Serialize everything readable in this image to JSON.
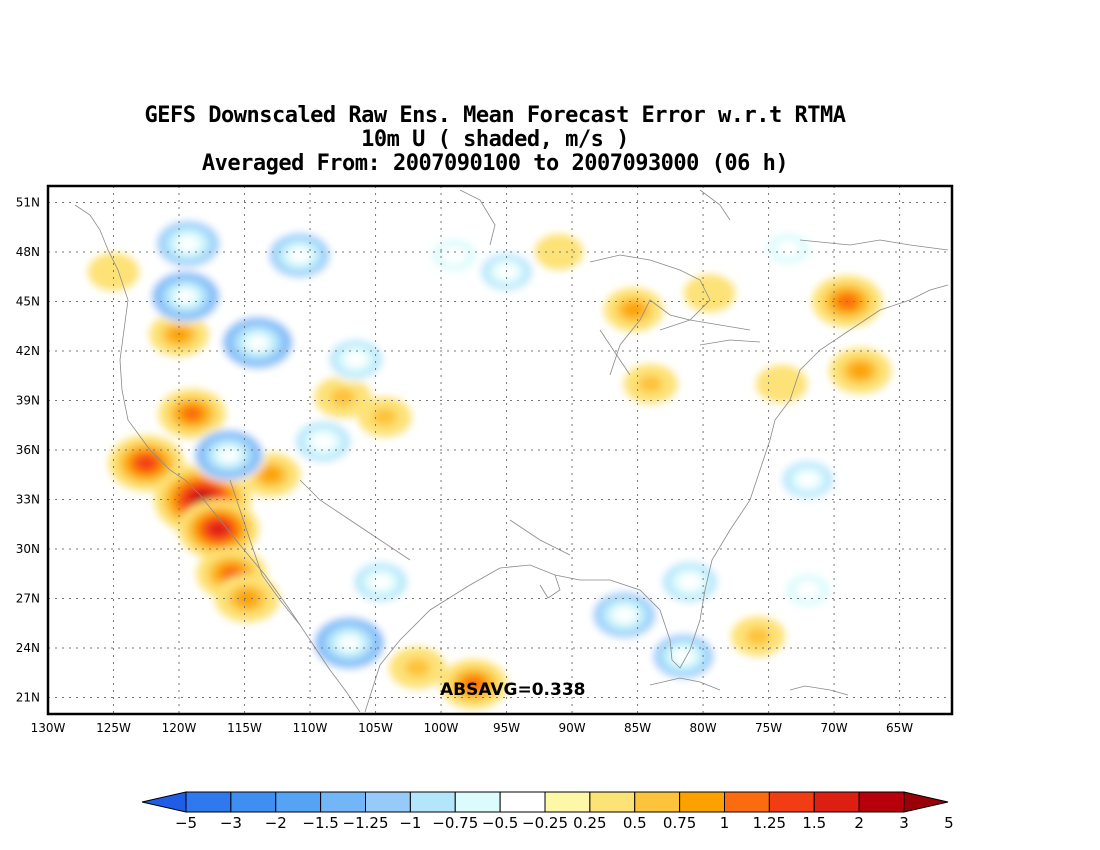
{
  "title": {
    "line1": "GEFS Downscaled Raw Ens. Mean Forecast Error w.r.t RTMA",
    "line2": "10m U ( shaded, m/s )",
    "line3": "Averaged From: 2007090100 to 2007093000 (06 h)"
  },
  "map": {
    "type": "contour-shaded map",
    "lon_range": [
      -130,
      -61
    ],
    "lat_range": [
      20,
      52
    ],
    "lat_labels": [
      "21N",
      "24N",
      "27N",
      "30N",
      "33N",
      "36N",
      "39N",
      "42N",
      "45N",
      "48N",
      "51N"
    ],
    "lat_values": [
      21,
      24,
      27,
      30,
      33,
      36,
      39,
      42,
      45,
      48,
      51
    ],
    "lon_labels": [
      "130W",
      "125W",
      "120W",
      "115W",
      "110W",
      "105W",
      "100W",
      "95W",
      "90W",
      "85W",
      "80W",
      "75W",
      "70W",
      "65W"
    ],
    "lon_values": [
      -130,
      -125,
      -120,
      -115,
      -110,
      -105,
      -100,
      -95,
      -90,
      -85,
      -80,
      -75,
      -70,
      -65
    ],
    "grid": true,
    "statistic_label": "ABSAVG=0.338"
  },
  "colorbar": {
    "levels": [
      "-5",
      "-3",
      "-2",
      "-1.5",
      "-1.25",
      "-1",
      "-0.75",
      "-0.5",
      "-0.25",
      "0.25",
      "0.5",
      "0.75",
      "1",
      "1.25",
      "1.5",
      "2",
      "3",
      "5"
    ],
    "colors": [
      "#1e5ee6",
      "#2f79ee",
      "#3f8ff2",
      "#55a3f5",
      "#72b6f7",
      "#96cbf9",
      "#b4e6fb",
      "#dcfbfc",
      "#ffffff",
      "#fdf7a8",
      "#fde277",
      "#fdc33b",
      "#fca200",
      "#fc6b10",
      "#f23d14",
      "#dd1e12",
      "#b8000c",
      "#9a0008"
    ]
  },
  "chart_data": {
    "type": "heatmap",
    "title": "GEFS Downscaled Raw Ens. Mean Forecast Error w.r.t RTMA",
    "subtitle": "10m U ( shaded, m/s )",
    "xlabel": "",
    "ylabel": "",
    "xlim": [
      -130,
      -61
    ],
    "ylim": [
      20,
      52
    ],
    "absavg": 0.338,
    "blobs": [
      {
        "lon": -122.5,
        "lat": 35.2,
        "value": 1.4
      },
      {
        "lon": -118.2,
        "lat": 33.0,
        "value": 2.2
      },
      {
        "lon": -117.0,
        "lat": 31.2,
        "value": 1.6
      },
      {
        "lon": -116.0,
        "lat": 28.5,
        "value": 1.2
      },
      {
        "lon": -114.8,
        "lat": 27.0,
        "value": 1.0
      },
      {
        "lon": -119.0,
        "lat": 38.2,
        "value": 1.1
      },
      {
        "lon": -120.0,
        "lat": 43.0,
        "value": 0.8
      },
      {
        "lon": -125.0,
        "lat": 46.8,
        "value": 0.5
      },
      {
        "lon": -113.0,
        "lat": 34.5,
        "value": 0.8
      },
      {
        "lon": -107.5,
        "lat": 39.2,
        "value": 0.7
      },
      {
        "lon": -104.3,
        "lat": 38.0,
        "value": 0.6
      },
      {
        "lon": -97.5,
        "lat": 21.8,
        "value": 1.1
      },
      {
        "lon": -101.8,
        "lat": 22.8,
        "value": 0.7
      },
      {
        "lon": -85.3,
        "lat": 44.5,
        "value": 0.8
      },
      {
        "lon": -91.0,
        "lat": 48.0,
        "value": 0.4
      },
      {
        "lon": -84.0,
        "lat": 40.0,
        "value": 0.6
      },
      {
        "lon": -69.0,
        "lat": 45.0,
        "value": 1.2
      },
      {
        "lon": -68.0,
        "lat": 40.8,
        "value": 0.9
      },
      {
        "lon": -74.0,
        "lat": 40.0,
        "value": 0.5
      },
      {
        "lon": -79.5,
        "lat": 45.5,
        "value": 0.5
      },
      {
        "lon": -75.8,
        "lat": 24.7,
        "value": 0.6
      },
      {
        "lon": -119.3,
        "lat": 48.5,
        "value": -1.2
      },
      {
        "lon": -119.5,
        "lat": 45.3,
        "value": -1.3
      },
      {
        "lon": -114.0,
        "lat": 42.5,
        "value": -1.4
      },
      {
        "lon": -116.2,
        "lat": 35.7,
        "value": -1.3
      },
      {
        "lon": -109.0,
        "lat": 36.5,
        "value": -1.0
      },
      {
        "lon": -110.8,
        "lat": 47.8,
        "value": -1.1
      },
      {
        "lon": -106.5,
        "lat": 41.5,
        "value": -0.9
      },
      {
        "lon": -107.0,
        "lat": 24.3,
        "value": -1.4
      },
      {
        "lon": -104.6,
        "lat": 28.0,
        "value": -0.9
      },
      {
        "lon": -99.0,
        "lat": 47.8,
        "value": -0.7
      },
      {
        "lon": -95.0,
        "lat": 46.8,
        "value": -0.8
      },
      {
        "lon": -86.0,
        "lat": 26.0,
        "value": -1.2
      },
      {
        "lon": -81.5,
        "lat": 23.5,
        "value": -1.1
      },
      {
        "lon": -81.0,
        "lat": 28.0,
        "value": -1.0
      },
      {
        "lon": -72.0,
        "lat": 34.2,
        "value": -0.8
      },
      {
        "lon": -72.0,
        "lat": 27.5,
        "value": -0.7
      },
      {
        "lon": -73.5,
        "lat": 48.2,
        "value": -0.6
      },
      {
        "lon": -93.0,
        "lat": 29.0,
        "value": -0.4
      },
      {
        "lon": -90.5,
        "lat": 38.5,
        "value": -0.4
      }
    ]
  }
}
